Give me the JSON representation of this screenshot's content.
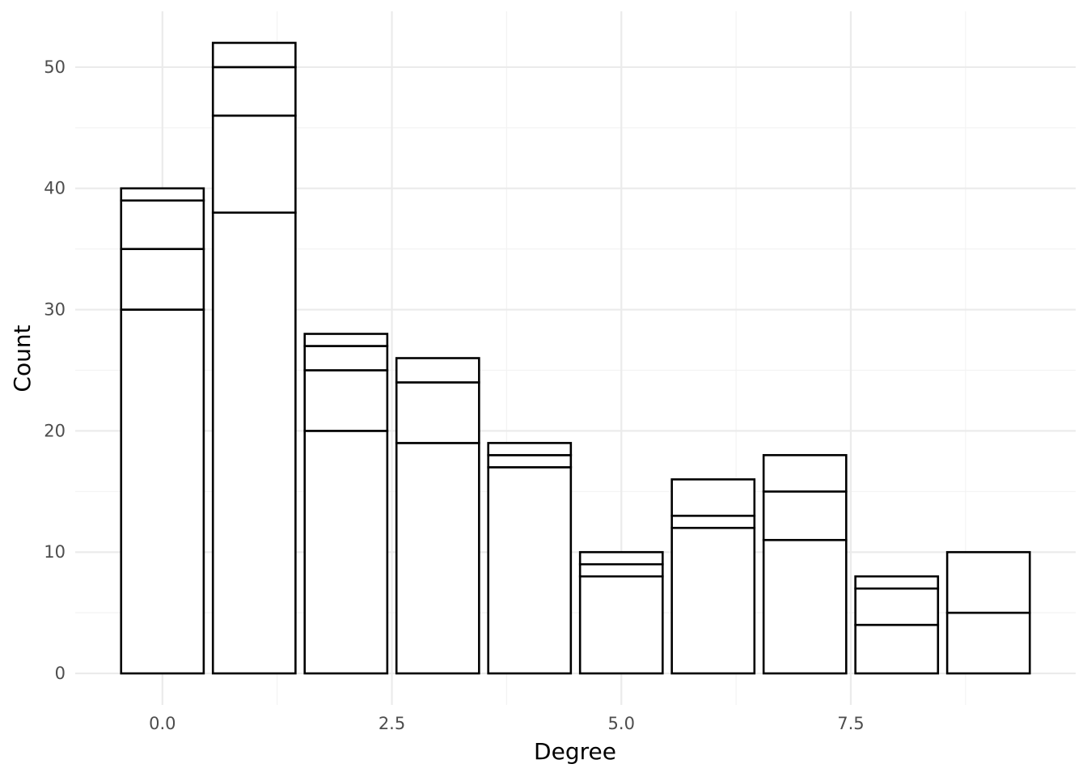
{
  "chart_data": {
    "type": "bar",
    "stacked": true,
    "title": "",
    "xlabel": "Degree",
    "ylabel": "Count",
    "x": [
      0,
      1,
      2,
      3,
      4,
      5,
      6,
      7,
      8,
      9
    ],
    "stack_boundaries": [
      [
        30,
        35,
        39,
        40
      ],
      [
        38,
        46,
        50,
        52
      ],
      [
        20,
        25,
        27,
        28
      ],
      [
        19,
        24,
        26
      ],
      [
        17,
        18,
        19
      ],
      [
        8,
        9,
        10
      ],
      [
        12,
        13,
        16
      ],
      [
        11,
        15,
        18
      ],
      [
        4,
        7,
        8
      ],
      [
        5,
        10
      ]
    ],
    "totals": [
      40,
      52,
      28,
      26,
      19,
      10,
      16,
      18,
      8,
      10
    ],
    "xlim": [
      -0.95,
      9.95
    ],
    "ylim": [
      -2.6,
      54.6
    ],
    "x_ticks": [
      0.0,
      2.5,
      5.0,
      7.5
    ],
    "x_tick_labels": [
      "0.0",
      "2.5",
      "5.0",
      "7.5"
    ],
    "y_ticks": [
      0,
      10,
      20,
      30,
      40,
      50
    ],
    "y_tick_labels": [
      "0",
      "10",
      "20",
      "30",
      "40",
      "50"
    ],
    "grid": true,
    "legend": "none",
    "bar_fill": "#ffffff",
    "bar_outline": "#000000",
    "grid_color": "#ebebeb",
    "background": "#ffffff"
  }
}
